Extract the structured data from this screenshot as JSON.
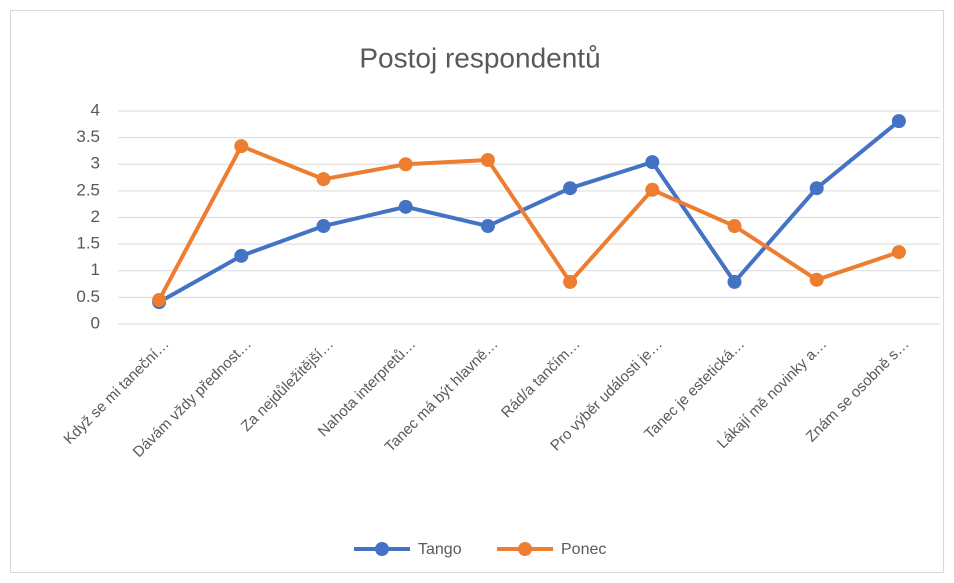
{
  "chart_data": {
    "type": "line",
    "title": "Postoj respondentů",
    "categories": [
      "Když se mi taneční…",
      "Dávám vždy přednost…",
      "Za nejdůležitější…",
      "Nahota interpretů…",
      "Tanec má být hlavně…",
      "Rád/a tančím…",
      "Pro výběr události je…",
      "Tanec je estetická…",
      "Lákají mě novinky a…",
      "Znám se osobně s…"
    ],
    "series": [
      {
        "name": "Tango",
        "color": "#4472c4",
        "values": [
          0.41,
          1.28,
          1.84,
          2.2,
          1.84,
          2.55,
          3.04,
          0.79,
          2.55,
          3.81
        ]
      },
      {
        "name": "Ponec",
        "color": "#ed7d31",
        "values": [
          0.45,
          3.34,
          2.72,
          3.0,
          3.08,
          0.79,
          2.52,
          1.84,
          0.83,
          1.35
        ]
      }
    ],
    "ylim": [
      0,
      4
    ],
    "yticks": [
      0,
      0.5,
      1,
      1.5,
      2,
      2.5,
      3,
      3.5,
      4
    ],
    "grid": true,
    "legend": "bottom"
  }
}
